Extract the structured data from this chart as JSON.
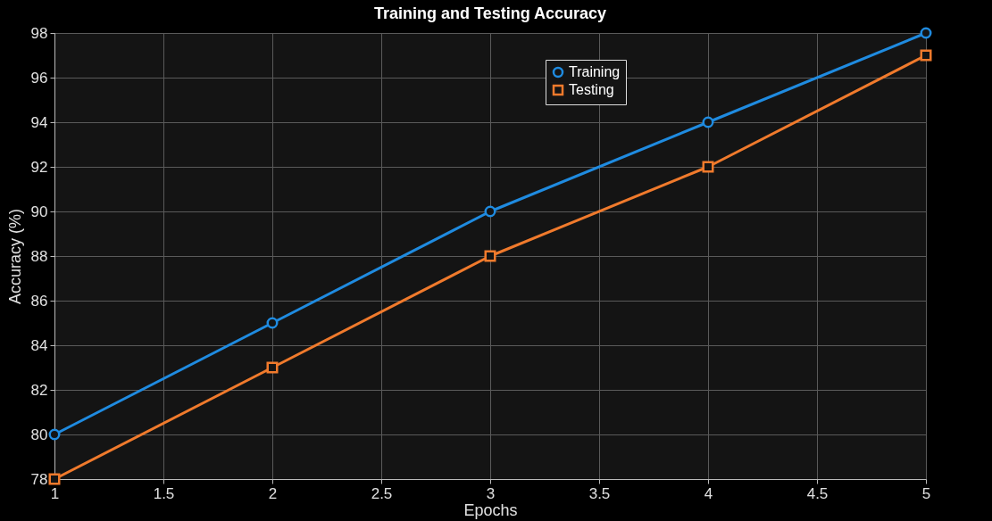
{
  "chart_data": {
    "type": "line",
    "title": "Training and Testing Accuracy",
    "xlabel": "Epochs",
    "ylabel": "Accuracy (%)",
    "x": [
      1,
      2,
      3,
      4,
      5
    ],
    "series": [
      {
        "name": "Training",
        "color": "#1f8be0",
        "marker": "circle",
        "values": [
          80,
          85,
          90,
          94,
          98
        ]
      },
      {
        "name": "Testing",
        "color": "#f07a2c",
        "marker": "square",
        "values": [
          78,
          83,
          88,
          92,
          97
        ]
      }
    ],
    "xlim": [
      1,
      5
    ],
    "xticks": [
      1,
      1.5,
      2,
      2.5,
      3,
      3.5,
      4,
      4.5,
      5
    ],
    "ylim": [
      78,
      98
    ],
    "yticks": [
      78,
      80,
      82,
      84,
      86,
      88,
      90,
      92,
      94,
      96,
      98
    ],
    "grid": true,
    "legend": "top right",
    "line_style": "solid"
  }
}
